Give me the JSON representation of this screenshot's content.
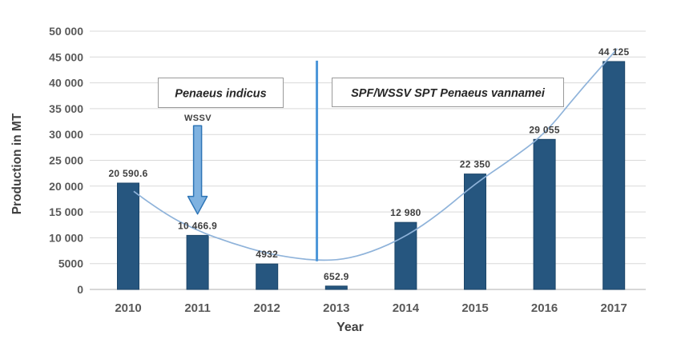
{
  "chart_data": {
    "type": "bar",
    "title": "",
    "xlabel": "Year",
    "ylabel": "Production in MT",
    "categories": [
      "2010",
      "2011",
      "2012",
      "2013",
      "2014",
      "2015",
      "2016",
      "2017"
    ],
    "values": [
      20590.6,
      10466.9,
      4932,
      652.9,
      12980,
      22350,
      29055,
      44125
    ],
    "value_labels": [
      "20 590.6",
      "10 466.9",
      "4932",
      "652.9",
      "12 980",
      "22 350",
      "29 055",
      "44 125"
    ],
    "ylim": [
      0,
      50000
    ],
    "ytick_values": [
      0,
      5000,
      10000,
      15000,
      20000,
      25000,
      30000,
      35000,
      40000,
      45000,
      50000
    ],
    "ytick_labels": [
      "0",
      "5000",
      "10 000",
      "15 000",
      "20 000",
      "25 000",
      "30 000",
      "35 000",
      "40 000",
      "45 000",
      "50 000"
    ],
    "grid": "horizontal",
    "legend": "none",
    "bar_color": "#26567f",
    "bar_edge_color": "#1d4669",
    "gridline_color": "#d9d9d9",
    "baseline_color": "#bfbfbf",
    "trend_line": {
      "color": "#8fb3da",
      "x": [
        2010.08,
        2010.5,
        2011,
        2011.5,
        2012,
        2012.4,
        2012.75,
        2013.1,
        2013.5,
        2014,
        2014.5,
        2015,
        2015.5,
        2016,
        2016.5,
        2017.05
      ],
      "y": [
        19000,
        14800,
        11350,
        8900,
        7000,
        6050,
        5600,
        5800,
        7200,
        10200,
        14800,
        20500,
        25000,
        30000,
        38300,
        46600
      ]
    },
    "annotations": {
      "phase_divider": {
        "x_year": 2012.72,
        "value_from": 5450,
        "value_to": 44300,
        "color": "#4c96d9"
      },
      "box_left": {
        "text": "Penaeus indicus"
      },
      "box_right": {
        "text": "SPF/WSSV SPT Penaeus vannamei"
      },
      "wssv_arrow": {
        "label": "WSSV",
        "x_year": 2011,
        "tail_value": 31700,
        "tip_value": 14600,
        "fill": "#7fb2e0",
        "stroke": "#2e75b6"
      }
    }
  }
}
